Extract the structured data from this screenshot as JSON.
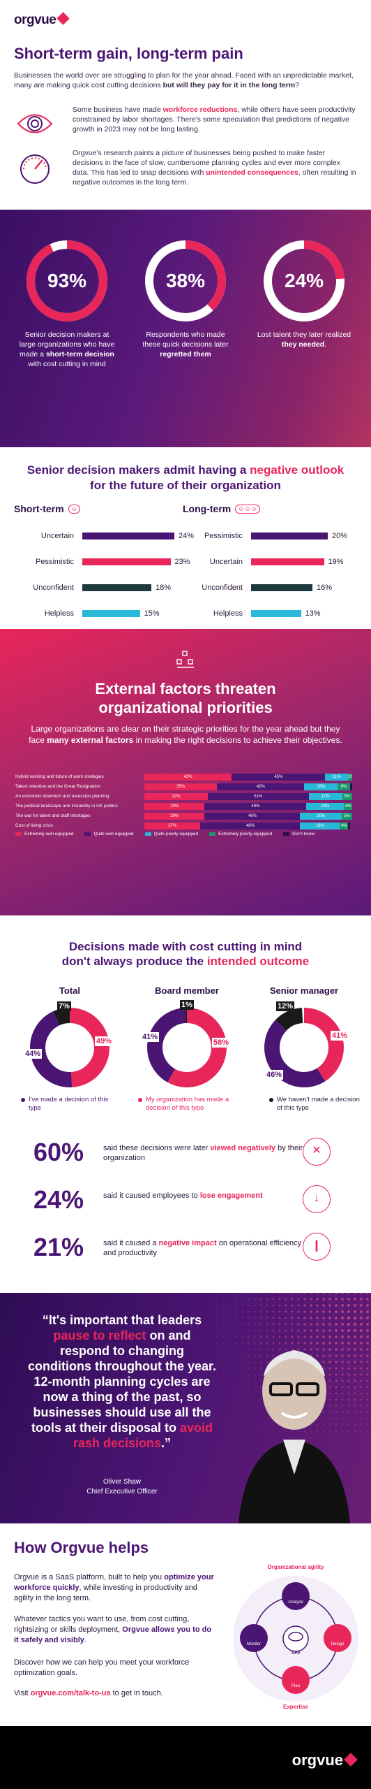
{
  "header": {
    "brand": "orgvue",
    "title": "Short-term gain, long-term pain",
    "intro_a": "Businesses the world over are struggling to plan for the year ahead. Faced with an unpredictable market, many are making quick cost cutting decisions ",
    "intro_b": "but will they pay for it in the long term",
    "intro_c": "?",
    "p1_a": "Some business have made ",
    "p1_b": "workforce reductions",
    "p1_c": ", while others have seen productivity constrained by labor shortages. There's some speculation that predictions of negative growth in 2023 may not be long lasting.",
    "p2_a": "Orgvue's research paints a picture of businesses being pushed to make faster decisions in the face of slow, cumbersome planning cycles and ever more complex data. This has led to snap decisions with ",
    "p2_b": "unintended consequences",
    "p2_c": ", often resulting in negative outcomes in the long term."
  },
  "stats": [
    {
      "pct": "93%",
      "fill": 0.93,
      "a": "Senior decision makers at large organizations who have made a ",
      "b": "short-term decision",
      "c": " with cost cutting in mind"
    },
    {
      "pct": "38%",
      "fill": 0.38,
      "a": "Respondents who made these quick decisions later ",
      "b": "regretted them",
      "c": ""
    },
    {
      "pct": "24%",
      "fill": 0.24,
      "a": "Lost talent they later realized ",
      "b": "they needed",
      "c": "."
    }
  ],
  "outlook": {
    "title_a": "Senior decision makers admit having a ",
    "title_b": "negative outlook",
    "title_c": "for the future of their organization",
    "short_label": "Short-term",
    "long_label": "Long-term",
    "short_term": [
      {
        "label": "Uncertain",
        "value": 24,
        "display": "24%",
        "color": "#4b1573"
      },
      {
        "label": "Pessimistic",
        "value": 23,
        "display": "23%",
        "color": "#e8265a"
      },
      {
        "label": "Unconfident",
        "value": 18,
        "display": "18%",
        "color": "#1f3a3e"
      },
      {
        "label": "Helpless",
        "value": 15,
        "display": "15%",
        "color": "#2ab8d8"
      }
    ],
    "long_term": [
      {
        "label": "Pessimistic",
        "value": 20,
        "display": "20%",
        "color": "#4b1573"
      },
      {
        "label": "Uncertain",
        "value": 19,
        "display": "19%",
        "color": "#e8265a"
      },
      {
        "label": "Unconfident",
        "value": 16,
        "display": "16%",
        "color": "#1f3a3e"
      },
      {
        "label": "Helpless",
        "value": 13,
        "display": "13%",
        "color": "#2ab8d8"
      }
    ]
  },
  "external": {
    "title": "External factors threaten organizational priorities",
    "sub_a": "Large organizations are clear on their strategic priorities for the year ahead but they face ",
    "sub_b": "many external factors",
    "sub_c": " in making the right decisions to achieve their objectives.",
    "rows": [
      {
        "label": "Hybrid working and future of work strategies",
        "v": [
          42,
          45,
          11,
          2,
          0
        ]
      },
      {
        "label": "Talent retention and the Great Resignation",
        "v": [
          35,
          42,
          16,
          6,
          1
        ]
      },
      {
        "label": "An economic downturn and recession planning",
        "v": [
          32,
          51,
          17,
          5,
          0
        ]
      },
      {
        "label": "The political landscape and instability in UK politics",
        "v": [
          29,
          49,
          18,
          4,
          0
        ]
      },
      {
        "label": "The war for talent and staff shortages",
        "v": [
          29,
          46,
          20,
          5,
          0
        ]
      },
      {
        "label": "Cost of living crisis",
        "v": [
          27,
          48,
          19,
          4,
          1
        ]
      }
    ],
    "seg_colors": [
      "#e8265a",
      "#4b1573",
      "#2ab8d8",
      "#1a9a6a",
      "#2a1048"
    ],
    "legend": [
      "Extremely well equipped",
      "Quite well equipped",
      "Quite poorly equipped",
      "Extremely poorly equipped",
      "Don't know"
    ]
  },
  "decisions": {
    "title_a": "Decisions made with cost cutting in mind",
    "title_b": "don't always produce the ",
    "title_c": "intended outcome",
    "donuts": [
      {
        "title": "Total",
        "values": [
          49,
          44,
          7
        ],
        "labels": [
          "49%",
          "44%",
          "7%"
        ]
      },
      {
        "title": "Board member",
        "values": [
          58,
          41,
          1
        ],
        "labels": [
          "58%",
          "41%",
          "1%"
        ]
      },
      {
        "title": "Senior manager",
        "values": [
          41,
          46,
          12
        ],
        "labels": [
          "41%",
          "46%",
          "12%"
        ]
      }
    ],
    "colors": [
      "#e8265a",
      "#4b1573",
      "#1a1a1a"
    ],
    "keys": [
      "I've made a decision of this type",
      "My organization has made a decision of this type",
      "We haven't made a decision of this type"
    ],
    "big": [
      {
        "n": "60%",
        "a": "said these decisions were later ",
        "b": "viewed negatively",
        "c": " by their organization",
        "icon": "close-icon"
      },
      {
        "n": "24%",
        "a": "said it caused employees to ",
        "b": "lose engagement",
        "c": "",
        "icon": "down-arrow-icon"
      },
      {
        "n": "21%",
        "a": "said it caused a ",
        "b": "negative impact",
        "c": " on operational efficiency and productivity",
        "icon": "bar-chart-icon"
      }
    ]
  },
  "quote": {
    "q1": "“It's important that leaders ",
    "q2": "pause to reflect",
    "q3": " on and respond to changing conditions throughout the year. 12-month planning cycles are now a thing of the past, so businesses should use all the tools at their disposal to ",
    "q4": "avoid rash decisions",
    "q5": ".”",
    "name": "Oliver Shaw",
    "role": "Chief Executive Officer"
  },
  "how": {
    "title": "How Orgvue helps",
    "p1_a": "Orgvue is a SaaS platform, built to help you ",
    "p1_b": "optimize your workforce quickly",
    "p1_c": ", while investing in productivity and agility in the long term.",
    "p2_a": "Whatever tactics you want to use, from cost cutting, rightsizing or skills deployment, ",
    "p2_b": "Orgvue allows you to do it safely and visibly",
    "p2_c": ".",
    "p3": "Discover how we can help you meet your workforce optimization goals.",
    "p4_a": "Visit ",
    "p4_b": "orgvue.com/talk-to-us",
    "p4_c": " to get in touch.",
    "orbit_top": "Organizational agility",
    "orbit_bottom": "Expertise",
    "nodes": [
      "Analyze",
      "Design",
      "Plan",
      "Monitor",
      "See"
    ]
  },
  "footer": {
    "brand": "orgvue"
  }
}
